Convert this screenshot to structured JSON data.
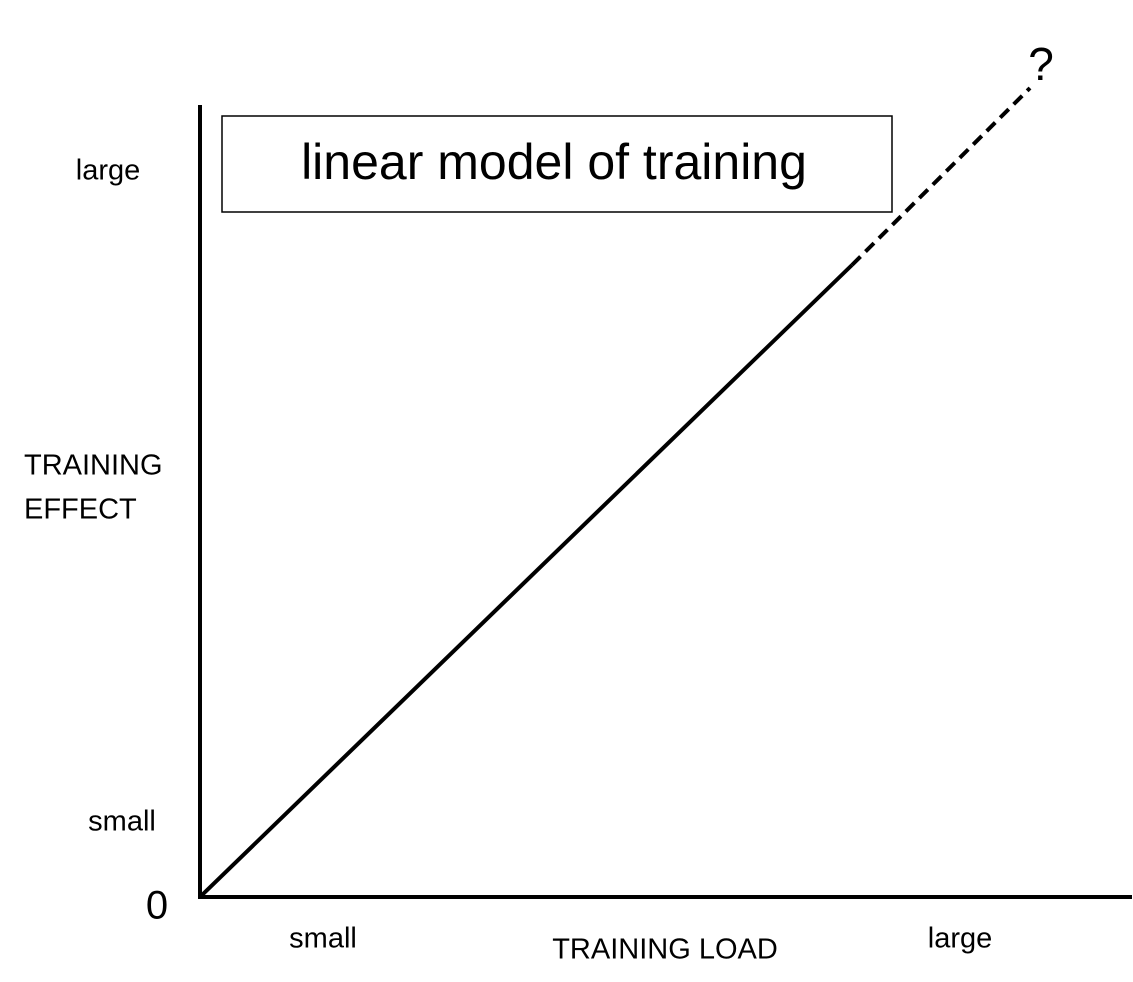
{
  "diagram": {
    "title": "linear model of training",
    "y_axis": {
      "top_label": "large",
      "label_lines": [
        "TRAINING",
        "EFFECT"
      ],
      "bottom_label": "small",
      "origin": "0"
    },
    "x_axis": {
      "left_label": "small",
      "label": "TRAINING LOAD",
      "right_label": "large"
    },
    "annotation": "?"
  }
}
